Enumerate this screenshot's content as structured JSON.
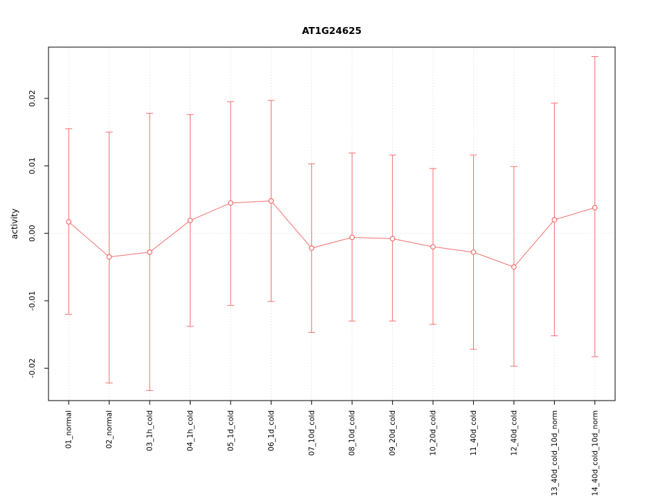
{
  "page": {
    "title": "AT1G24625"
  },
  "chart_data": {
    "type": "line",
    "title": "AT1G24625",
    "xlabel": "",
    "ylabel": "activity",
    "categories": [
      "01_normal",
      "02_normal",
      "03_1h_cold",
      "04_1h_cold",
      "05_1d_cold",
      "06_1d_cold",
      "07_10d_cold",
      "08_10d_cold",
      "09_20d_cold",
      "10_20d_cold",
      "11_40d_cold",
      "12_40d_cold",
      "13_40d_cold_10d_norm",
      "14_40d_cold_10d_norm"
    ],
    "series": [
      {
        "name": "activity",
        "means": [
          0.0017,
          -0.0035,
          -0.0028,
          0.0019,
          0.0045,
          0.0048,
          -0.0022,
          -0.0006,
          -0.0008,
          -0.002,
          -0.0028,
          -0.005,
          0.002,
          0.0038
        ],
        "upper": [
          0.0155,
          0.015,
          0.0178,
          0.0176,
          0.0195,
          0.0197,
          0.0103,
          0.0119,
          0.0116,
          0.0096,
          0.0116,
          0.0099,
          0.0193,
          0.0262
        ],
        "lower": [
          -0.012,
          -0.0222,
          -0.0233,
          -0.0138,
          -0.0107,
          -0.0101,
          -0.0147,
          -0.013,
          -0.013,
          -0.0135,
          -0.0172,
          -0.0197,
          -0.0152,
          -0.0183
        ]
      }
    ],
    "ylim": [
      -0.0248,
      0.0276
    ],
    "yticks": [
      -0.02,
      -0.01,
      0,
      0.01,
      0.02
    ],
    "ytick_labels": [
      "-0.02",
      "-0.01",
      "0.00",
      "0.01",
      "0.02"
    ],
    "legend": "none",
    "grid": "dotted vertical gridline at each category; dotted horizontal line at y=0",
    "colors": {
      "series": "#f36c6c",
      "grid": "#d9d9d9",
      "zero_line": "#d9d9d9",
      "box": "#000000",
      "text": "#000000",
      "background": "#ffffff"
    }
  }
}
